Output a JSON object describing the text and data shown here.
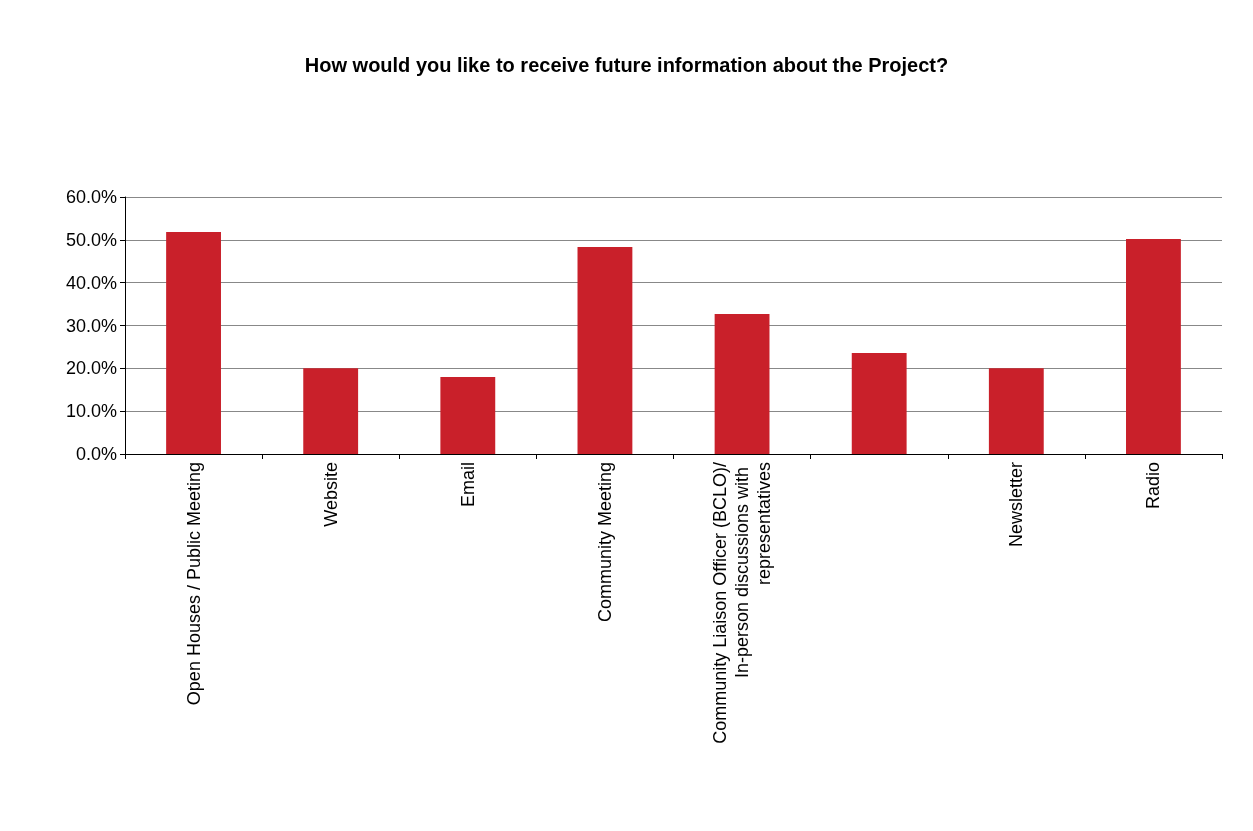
{
  "chart_data": {
    "type": "bar",
    "title": "How would you like to receive future information about the Project?",
    "categories": [
      "Open Houses / Public Meeting",
      "Website",
      "Email",
      "Community Meeting",
      "Community Liaison Officer (BCLO)/In-person discussions with representatives",
      null,
      "Newsletter",
      "Radio"
    ],
    "values": [
      51.8,
      20.0,
      18.0,
      48.3,
      32.7,
      23.6,
      20.0,
      50.2
    ],
    "color": "#c9202a",
    "ylim": [
      0,
      60
    ],
    "yticks": [
      {
        "value": 0,
        "label": "0.0%"
      },
      {
        "value": 10,
        "label": "10.0%"
      },
      {
        "value": 20,
        "label": "20.0%"
      },
      {
        "value": 30,
        "label": "30.0%"
      },
      {
        "value": 40,
        "label": "40.0%"
      },
      {
        "value": 50,
        "label": "50.0%"
      },
      {
        "value": 60,
        "label": "60.0%"
      }
    ],
    "grid": "y"
  }
}
